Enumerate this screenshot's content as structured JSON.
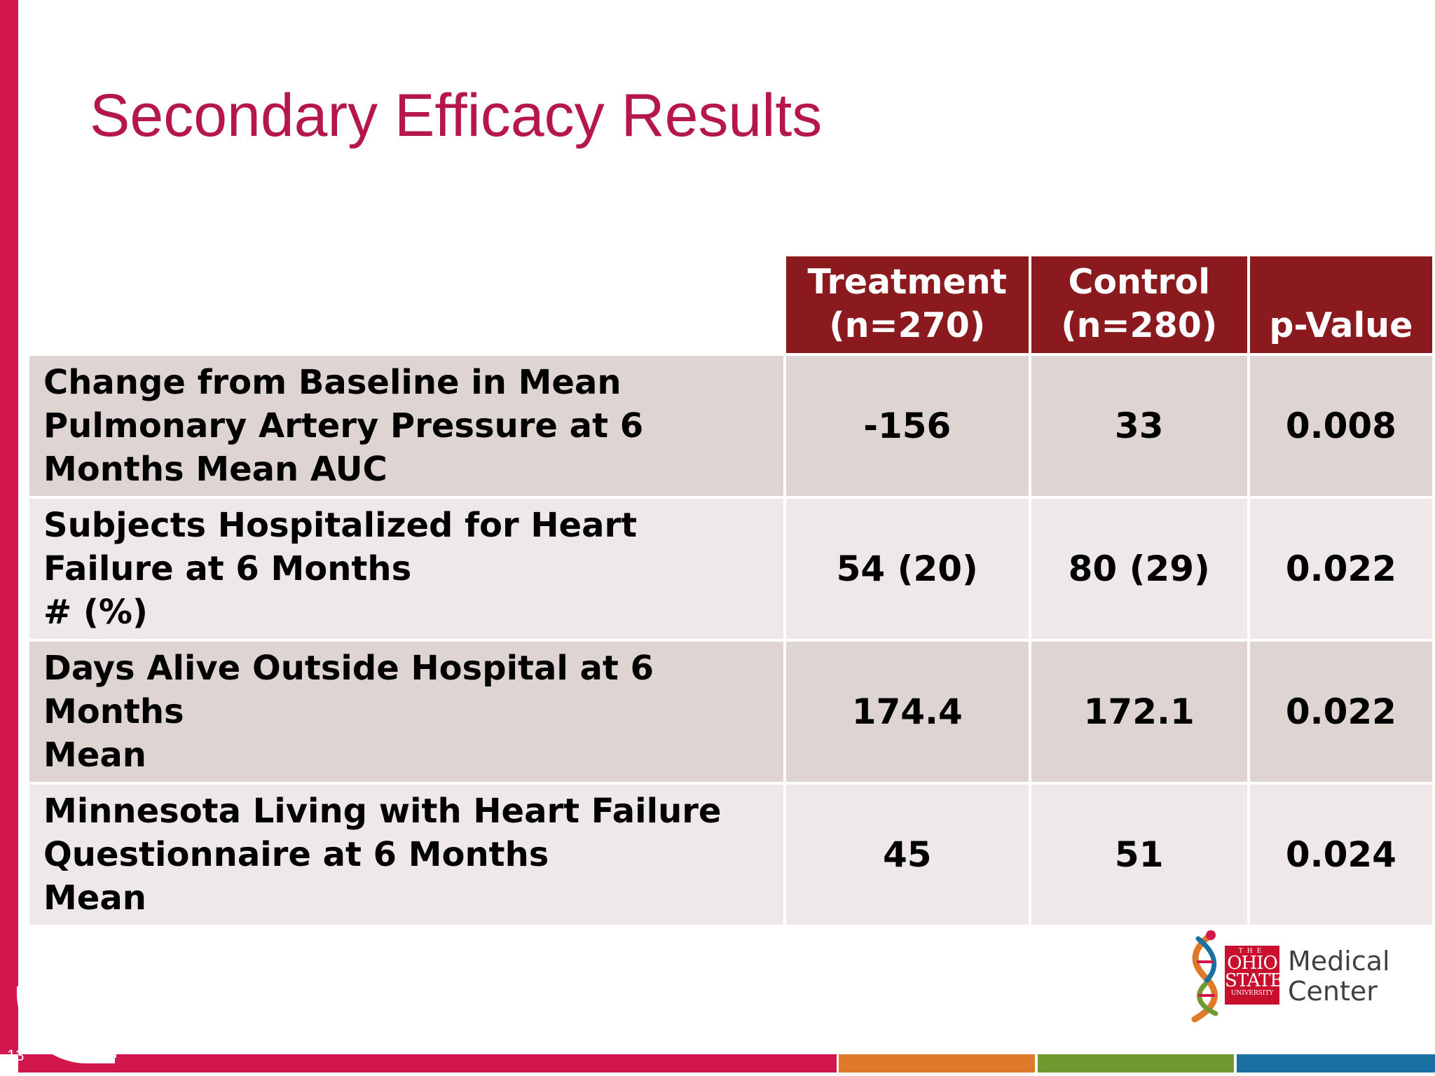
{
  "slide": {
    "title": "Secondary Efficacy Results",
    "page_number": "13"
  },
  "table": {
    "headers": [
      {
        "line1": "Treatment",
        "line2": "(n=270)"
      },
      {
        "line1": "Control",
        "line2": "(n=280)"
      },
      {
        "line1": "",
        "line2": "p-Value"
      }
    ],
    "rows": [
      {
        "label_lines": [
          "Change from Baseline in Mean",
          "Pulmonary Artery Pressure at 6",
          "Months Mean AUC"
        ],
        "treatment": "-156",
        "control": "33",
        "p_value": "0.008"
      },
      {
        "label_lines": [
          "Subjects Hospitalized for Heart",
          "Failure at 6 Months",
          "# (%)"
        ],
        "treatment": "54 (20)",
        "control": "80 (29)",
        "p_value": "0.022"
      },
      {
        "label_lines": [
          "Days Alive Outside Hospital at 6",
          "Months",
          "Mean"
        ],
        "treatment": "174.4",
        "control": "172.1",
        "p_value": "0.022"
      },
      {
        "label_lines": [
          "Minnesota Living with Heart Failure",
          "Questionnaire at 6 Months",
          "Mean"
        ],
        "treatment": "45",
        "control": "51",
        "p_value": "0.024"
      }
    ]
  },
  "logo": {
    "seal_the": "THE",
    "seal_ohio": "OHIO",
    "seal_state": "STATE",
    "seal_university": "UNIVERSITY",
    "text_line1": "Medical",
    "text_line2": "Center"
  },
  "colors": {
    "accent_red": "#d2174c",
    "title_red": "#b5174b",
    "header_maroon": "#8b1a1f",
    "row_dark": "#ded5d2",
    "row_light": "#eee9e8"
  }
}
